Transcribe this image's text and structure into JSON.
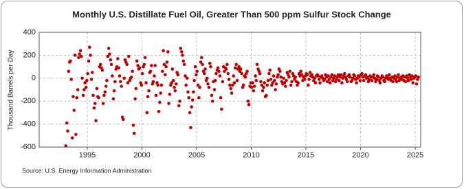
{
  "chart_data": {
    "type": "scatter",
    "title": "Monthly U.S. Distillate Fuel Oil, Greater Than 500 ppm Sulfur Stock Change",
    "y_label": "Thousand Barrels per Day",
    "source": "Source: U.S. Energy Information Administration",
    "color": "#c00000",
    "grid": true,
    "xlim": [
      1990.6,
      2025.5
    ],
    "xticks": [
      1995,
      2000,
      2005,
      2010,
      2015,
      2020,
      2025
    ],
    "ylim": [
      -600,
      400
    ],
    "yticks": [
      400,
      200,
      0,
      -200,
      -400,
      -600
    ],
    "x": [
      1993.04,
      1993.13,
      1993.21,
      1993.29,
      1993.38,
      1993.46,
      1993.54,
      1993.63,
      1993.71,
      1993.79,
      1993.88,
      1993.96,
      1994.04,
      1994.13,
      1994.21,
      1994.29,
      1994.38,
      1994.46,
      1994.54,
      1994.63,
      1994.71,
      1994.79,
      1994.88,
      1994.96,
      1995.04,
      1995.13,
      1995.21,
      1995.29,
      1995.38,
      1995.46,
      1995.54,
      1995.63,
      1995.71,
      1995.79,
      1995.88,
      1995.96,
      1996.04,
      1996.13,
      1996.21,
      1996.29,
      1996.38,
      1996.46,
      1996.54,
      1996.63,
      1996.71,
      1996.79,
      1996.88,
      1996.96,
      1997.04,
      1997.13,
      1997.21,
      1997.29,
      1997.38,
      1997.46,
      1997.54,
      1997.63,
      1997.71,
      1997.79,
      1997.88,
      1997.96,
      1998.04,
      1998.13,
      1998.21,
      1998.29,
      1998.38,
      1998.46,
      1998.54,
      1998.63,
      1998.71,
      1998.79,
      1998.88,
      1998.96,
      1999.04,
      1999.13,
      1999.21,
      1999.29,
      1999.38,
      1999.46,
      1999.54,
      1999.63,
      1999.71,
      1999.79,
      1999.88,
      1999.96,
      2000.04,
      2000.13,
      2000.21,
      2000.29,
      2000.38,
      2000.46,
      2000.54,
      2000.63,
      2000.71,
      2000.79,
      2000.88,
      2000.96,
      2001.04,
      2001.13,
      2001.21,
      2001.29,
      2001.38,
      2001.46,
      2001.54,
      2001.63,
      2001.71,
      2001.79,
      2001.88,
      2001.96,
      2002.04,
      2002.13,
      2002.21,
      2002.29,
      2002.38,
      2002.46,
      2002.54,
      2002.63,
      2002.71,
      2002.79,
      2002.88,
      2002.96,
      2003.04,
      2003.13,
      2003.21,
      2003.29,
      2003.38,
      2003.46,
      2003.54,
      2003.63,
      2003.71,
      2003.79,
      2003.88,
      2003.96,
      2004.04,
      2004.13,
      2004.21,
      2004.29,
      2004.38,
      2004.46,
      2004.54,
      2004.63,
      2004.71,
      2004.79,
      2004.88,
      2004.96,
      2005.04,
      2005.13,
      2005.21,
      2005.29,
      2005.38,
      2005.46,
      2005.54,
      2005.63,
      2005.71,
      2005.79,
      2005.88,
      2005.96,
      2006.04,
      2006.13,
      2006.21,
      2006.29,
      2006.38,
      2006.46,
      2006.54,
      2006.63,
      2006.71,
      2006.79,
      2006.88,
      2006.96,
      2007.04,
      2007.13,
      2007.21,
      2007.29,
      2007.38,
      2007.46,
      2007.54,
      2007.63,
      2007.71,
      2007.79,
      2007.88,
      2007.96,
      2008.04,
      2008.13,
      2008.21,
      2008.29,
      2008.38,
      2008.46,
      2008.54,
      2008.63,
      2008.71,
      2008.79,
      2008.88,
      2008.96,
      2009.04,
      2009.13,
      2009.21,
      2009.29,
      2009.38,
      2009.46,
      2009.54,
      2009.63,
      2009.71,
      2009.79,
      2009.88,
      2009.96,
      2010.04,
      2010.13,
      2010.21,
      2010.29,
      2010.38,
      2010.46,
      2010.54,
      2010.63,
      2010.71,
      2010.79,
      2010.88,
      2010.96,
      2011.04,
      2011.13,
      2011.21,
      2011.29,
      2011.38,
      2011.46,
      2011.54,
      2011.63,
      2011.71,
      2011.79,
      2011.88,
      2011.96,
      2012.04,
      2012.13,
      2012.21,
      2012.29,
      2012.38,
      2012.46,
      2012.54,
      2012.63,
      2012.71,
      2012.79,
      2012.88,
      2012.96,
      2013.04,
      2013.13,
      2013.21,
      2013.29,
      2013.38,
      2013.46,
      2013.54,
      2013.63,
      2013.71,
      2013.79,
      2013.88,
      2013.96,
      2014.04,
      2014.13,
      2014.21,
      2014.29,
      2014.38,
      2014.46,
      2014.54,
      2014.63,
      2014.71,
      2014.79,
      2014.88,
      2014.96,
      2015.04,
      2015.13,
      2015.21,
      2015.29,
      2015.38,
      2015.46,
      2015.54,
      2015.63,
      2015.71,
      2015.79,
      2015.88,
      2015.96,
      2016.04,
      2016.13,
      2016.21,
      2016.29,
      2016.38,
      2016.46,
      2016.54,
      2016.63,
      2016.71,
      2016.79,
      2016.88,
      2016.96,
      2017.04,
      2017.13,
      2017.21,
      2017.29,
      2017.38,
      2017.46,
      2017.54,
      2017.63,
      2017.71,
      2017.79,
      2017.88,
      2017.96,
      2018.04,
      2018.13,
      2018.21,
      2018.29,
      2018.38,
      2018.46,
      2018.54,
      2018.63,
      2018.71,
      2018.79,
      2018.88,
      2018.96,
      2019.04,
      2019.13,
      2019.21,
      2019.29,
      2019.38,
      2019.46,
      2019.54,
      2019.63,
      2019.71,
      2019.79,
      2019.88,
      2019.96,
      2020.04,
      2020.13,
      2020.21,
      2020.29,
      2020.38,
      2020.46,
      2020.54,
      2020.63,
      2020.71,
      2020.79,
      2020.88,
      2020.96,
      2021.04,
      2021.13,
      2021.21,
      2021.29,
      2021.38,
      2021.46,
      2021.54,
      2021.63,
      2021.71,
      2021.79,
      2021.88,
      2021.96,
      2022.04,
      2022.13,
      2022.21,
      2022.29,
      2022.38,
      2022.46,
      2022.54,
      2022.63,
      2022.71,
      2022.79,
      2022.88,
      2022.96,
      2023.04,
      2023.13,
      2023.21,
      2023.29,
      2023.38,
      2023.46,
      2023.54,
      2023.63,
      2023.71,
      2023.79,
      2023.88,
      2023.96,
      2024.04,
      2024.13,
      2024.21,
      2024.29,
      2024.38,
      2024.46,
      2024.54,
      2024.63,
      2024.71,
      2024.79,
      2024.88,
      2024.96,
      2025.04,
      2025.13,
      2025.21,
      2025.29
    ],
    "values": [
      -590,
      -390,
      -460,
      60,
      140,
      150,
      -10,
      -520,
      -160,
      -280,
      200,
      -490,
      -170,
      -100,
      180,
      210,
      240,
      190,
      0,
      -150,
      -100,
      -40,
      -80,
      -20,
      40,
      150,
      270,
      200,
      -10,
      50,
      -150,
      -260,
      -220,
      -370,
      -90,
      -160,
      -170,
      100,
      120,
      90,
      70,
      -220,
      -150,
      -120,
      -70,
      -20,
      190,
      260,
      210,
      160,
      120,
      20,
      -180,
      -110,
      -30,
      80,
      100,
      170,
      90,
      20,
      -30,
      -70,
      -340,
      -360,
      0,
      160,
      140,
      120,
      -40,
      190,
      -20,
      0,
      10,
      60,
      -410,
      -480,
      -180,
      -90,
      150,
      110,
      80,
      90,
      -40,
      -60,
      40,
      100,
      120,
      180,
      -40,
      -300,
      -160,
      -110,
      50,
      60,
      110,
      -50,
      -30,
      20,
      110,
      -150,
      -40,
      -60,
      -290,
      -210,
      -130,
      -60,
      60,
      240,
      120,
      30,
      100,
      140,
      230,
      -220,
      -140,
      -60,
      -40,
      80,
      -20,
      -80,
      -110,
      -50,
      50,
      30,
      -240,
      -200,
      260,
      230,
      200,
      150,
      120,
      20,
      -60,
      0,
      -120,
      -170,
      -300,
      -430,
      -250,
      -190,
      -120,
      -20,
      100,
      30,
      60,
      -60,
      -170,
      -80,
      140,
      180,
      120,
      60,
      40,
      80,
      -20,
      0,
      -50,
      -80,
      130,
      100,
      -150,
      -200,
      -30,
      -100,
      -20,
      40,
      70,
      90,
      60,
      20,
      -170,
      -270,
      -30,
      100,
      60,
      90,
      80,
      120,
      40,
      -10,
      -60,
      -90,
      -130,
      -60,
      20,
      -40,
      90,
      120,
      -20,
      80,
      100,
      60,
      80,
      40,
      -80,
      -60,
      20,
      10,
      40,
      60,
      -200,
      -230,
      -70,
      -40,
      -80,
      -40,
      -110,
      -70,
      20,
      -20,
      120,
      80,
      60,
      40,
      -30,
      -60,
      -110,
      -80,
      -40,
      -160,
      -150,
      -60,
      -20,
      40,
      70,
      -10,
      -60,
      -40,
      20,
      -20,
      -100,
      -50,
      10,
      30,
      80,
      60,
      10,
      -30,
      -50,
      0,
      -40,
      -70,
      -20,
      50,
      30,
      10,
      60,
      -60,
      -30,
      40,
      20,
      -10,
      10,
      -30,
      -60,
      -40,
      40,
      20,
      60,
      30,
      -20,
      10,
      -10,
      20,
      40,
      30,
      -60,
      -10,
      50,
      20,
      30,
      10,
      -20,
      0,
      -40,
      20,
      30,
      20,
      -10,
      -40,
      10,
      20,
      0,
      -20,
      -10,
      30,
      10,
      -30,
      20,
      -10,
      -40,
      10,
      30,
      -20,
      0,
      20,
      -30,
      -10,
      10,
      30,
      -20,
      10,
      30,
      -40,
      0,
      20,
      40,
      10,
      -10,
      -30,
      20,
      30,
      10,
      -30,
      -20,
      0,
      30,
      20,
      -10,
      -40,
      0,
      20,
      10,
      -20,
      30,
      40,
      10,
      -20,
      20,
      30,
      0,
      10,
      -30,
      -10,
      20,
      10,
      -20,
      10,
      30,
      0,
      -30,
      -10,
      20,
      10,
      -20,
      -40,
      0,
      20,
      10,
      -20,
      -30,
      0,
      20,
      10,
      -10,
      30,
      0,
      -20,
      10,
      -30,
      0,
      20,
      -10,
      -30,
      10,
      30,
      -20,
      0,
      10,
      -10,
      20,
      -20,
      10,
      -30,
      20,
      0,
      -20,
      30,
      10,
      -10,
      20,
      -40,
      0,
      10,
      20,
      -50,
      -10,
      10
    ]
  }
}
